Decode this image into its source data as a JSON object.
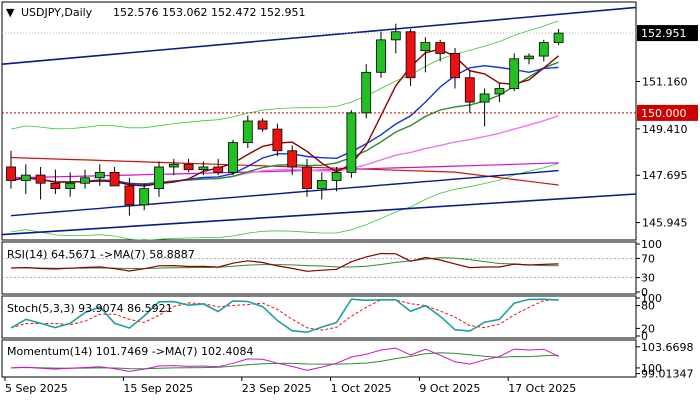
{
  "chart_data": {
    "type": "candlestick",
    "title": "USDJPY,Daily",
    "ohlc_header": "152.576 153.062 152.472 152.951",
    "x_tick_labels": [
      "5 Sep 2025",
      "15 Sep 2025",
      "23 Sep 2025",
      "1 Oct 2025",
      "9 Oct 2025",
      "17 Oct 2025"
    ],
    "x_tick_index": [
      0,
      8,
      16,
      22,
      28,
      34
    ],
    "price_ticks": [
      "151.160",
      "149.410",
      "147.695",
      "145.945"
    ],
    "price_ylim": [
      145.3,
      154.1
    ],
    "last_price": 152.951,
    "last_price_label": "152.951",
    "level_line": 150.0,
    "level_label": "150.000",
    "candles": [
      {
        "o": 148.0,
        "h": 148.6,
        "l": 147.2,
        "c": 147.5
      },
      {
        "o": 147.5,
        "h": 148.1,
        "l": 147.0,
        "c": 147.7
      },
      {
        "o": 147.7,
        "h": 148.0,
        "l": 146.8,
        "c": 147.4
      },
      {
        "o": 147.4,
        "h": 147.9,
        "l": 147.0,
        "c": 147.2
      },
      {
        "o": 147.2,
        "h": 147.8,
        "l": 146.9,
        "c": 147.4
      },
      {
        "o": 147.4,
        "h": 147.9,
        "l": 147.2,
        "c": 147.6
      },
      {
        "o": 147.6,
        "h": 148.1,
        "l": 147.3,
        "c": 147.8
      },
      {
        "o": 147.8,
        "h": 148.0,
        "l": 147.3,
        "c": 147.3
      },
      {
        "o": 147.3,
        "h": 147.6,
        "l": 146.2,
        "c": 146.6
      },
      {
        "o": 146.6,
        "h": 147.4,
        "l": 146.4,
        "c": 147.2
      },
      {
        "o": 147.2,
        "h": 148.2,
        "l": 146.9,
        "c": 148.0
      },
      {
        "o": 148.0,
        "h": 148.3,
        "l": 147.7,
        "c": 148.1
      },
      {
        "o": 148.1,
        "h": 148.3,
        "l": 147.8,
        "c": 147.9
      },
      {
        "o": 147.9,
        "h": 148.2,
        "l": 147.7,
        "c": 148.0
      },
      {
        "o": 148.0,
        "h": 148.3,
        "l": 147.7,
        "c": 147.8
      },
      {
        "o": 147.8,
        "h": 149.0,
        "l": 147.7,
        "c": 148.9
      },
      {
        "o": 148.9,
        "h": 149.9,
        "l": 148.7,
        "c": 149.7
      },
      {
        "o": 149.7,
        "h": 149.8,
        "l": 149.3,
        "c": 149.4
      },
      {
        "o": 149.4,
        "h": 149.6,
        "l": 148.4,
        "c": 148.6
      },
      {
        "o": 148.6,
        "h": 148.8,
        "l": 147.7,
        "c": 148.0
      },
      {
        "o": 148.0,
        "h": 148.3,
        "l": 146.9,
        "c": 147.2
      },
      {
        "o": 147.2,
        "h": 147.8,
        "l": 146.8,
        "c": 147.5
      },
      {
        "o": 147.5,
        "h": 148.0,
        "l": 147.1,
        "c": 147.8
      },
      {
        "o": 147.8,
        "h": 150.1,
        "l": 147.6,
        "c": 150.0
      },
      {
        "o": 150.0,
        "h": 151.8,
        "l": 149.8,
        "c": 151.5
      },
      {
        "o": 151.5,
        "h": 153.0,
        "l": 151.3,
        "c": 152.7
      },
      {
        "o": 152.7,
        "h": 153.3,
        "l": 152.2,
        "c": 153.0
      },
      {
        "o": 153.0,
        "h": 153.1,
        "l": 151.0,
        "c": 151.3
      },
      {
        "o": 152.3,
        "h": 152.8,
        "l": 151.5,
        "c": 152.6
      },
      {
        "o": 152.6,
        "h": 152.7,
        "l": 151.9,
        "c": 152.2
      },
      {
        "o": 152.2,
        "h": 152.4,
        "l": 150.9,
        "c": 151.3
      },
      {
        "o": 151.3,
        "h": 151.6,
        "l": 150.0,
        "c": 150.4
      },
      {
        "o": 150.4,
        "h": 150.9,
        "l": 149.5,
        "c": 150.7
      },
      {
        "o": 150.7,
        "h": 151.1,
        "l": 150.4,
        "c": 150.9
      },
      {
        "o": 150.9,
        "h": 152.2,
        "l": 150.8,
        "c": 152.0
      },
      {
        "o": 152.0,
        "h": 152.2,
        "l": 151.8,
        "c": 152.1
      },
      {
        "o": 152.1,
        "h": 152.7,
        "l": 151.9,
        "c": 152.6
      },
      {
        "o": 152.6,
        "h": 153.1,
        "l": 152.5,
        "c": 152.95
      }
    ],
    "indicators": {
      "rsi": {
        "label": "RSI(14) 64.5671  ->MA(7) 58.8887",
        "ticks": [
          "100",
          "70",
          "30",
          "0"
        ],
        "tick_values": [
          100,
          70,
          30,
          0
        ],
        "ylim": [
          0,
          100
        ]
      },
      "stoch": {
        "label": "Stoch(5,3,3) 93.9074 86.5921",
        "ticks": [
          "100",
          "80",
          "20",
          "0"
        ],
        "tick_values": [
          100,
          80,
          20,
          0
        ],
        "ylim": [
          0,
          100
        ]
      },
      "momentum": {
        "label": "Momentum(14) 101.7469  ->MA(7) 102.4084",
        "ticks": [
          "103.6698",
          "100",
          "99.01347"
        ],
        "tick_values": [
          103.6698,
          100,
          99.01347
        ],
        "ylim": [
          98.6,
          104.5
        ]
      }
    },
    "colors": {
      "bull": "#22c022",
      "bear": "#ee1111",
      "blue_channel": "#0a1a8a",
      "ma_blue": "#1133dd",
      "ma_darkred": "#8b0000",
      "ma_green": "#2e8b2e",
      "ma_pink": "#ee77ee",
      "ma_magenta": "#cc11cc",
      "ma_red": "#cc1111",
      "bollinger": "#33cc33",
      "level": "#cc0000",
      "last_price_bg": "#000000",
      "level_bg": "#cc0000"
    }
  }
}
